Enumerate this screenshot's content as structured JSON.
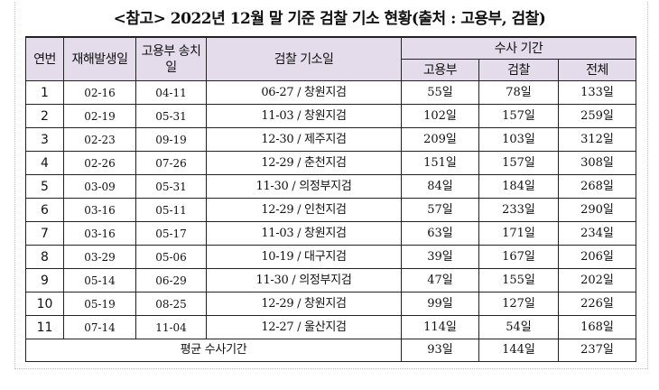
{
  "title": "<참고> 2022년 12월 말 기준 검찰 기소 현황(출처 : 고용부, 검찰)",
  "headers": {
    "no": "연번",
    "accident_date": "재해발생일",
    "sent_date": "고용부 송치일",
    "indict": "검찰 기소일",
    "investigation": "수사 기간",
    "labor": "고용부",
    "prosecution": "검찰",
    "total": "전체"
  },
  "rows": [
    {
      "no": "1",
      "accident": "02-16",
      "sent": "04-11",
      "indict": "06-27 / 창원지검",
      "labor": "55일",
      "prosecution": "78일",
      "total": "133일"
    },
    {
      "no": "2",
      "accident": "02-19",
      "sent": "05-31",
      "indict": "11-03 / 창원지검",
      "labor": "102일",
      "prosecution": "157일",
      "total": "259일"
    },
    {
      "no": "3",
      "accident": "02-23",
      "sent": "09-19",
      "indict": "12-30 / 제주지검",
      "labor": "209일",
      "prosecution": "103일",
      "total": "312일"
    },
    {
      "no": "4",
      "accident": "02-26",
      "sent": "07-26",
      "indict": "12-29 / 춘천지검",
      "labor": "151일",
      "prosecution": "157일",
      "total": "308일"
    },
    {
      "no": "5",
      "accident": "03-09",
      "sent": "05-31",
      "indict": "11-30 / 의정부지검",
      "labor": "84일",
      "prosecution": "184일",
      "total": "268일"
    },
    {
      "no": "6",
      "accident": "03-16",
      "sent": "05-11",
      "indict": "12-29 / 인천지검",
      "labor": "57일",
      "prosecution": "233일",
      "total": "290일"
    },
    {
      "no": "7",
      "accident": "03-16",
      "sent": "05-17",
      "indict": "11-03 / 창원지검",
      "labor": "63일",
      "prosecution": "171일",
      "total": "234일"
    },
    {
      "no": "8",
      "accident": "03-29",
      "sent": "05-06",
      "indict": "10-19 / 대구지검",
      "labor": "39일",
      "prosecution": "167일",
      "total": "206일"
    },
    {
      "no": "9",
      "accident": "05-14",
      "sent": "06-29",
      "indict": "11-30 / 의정부지검",
      "labor": "47일",
      "prosecution": "155일",
      "total": "202일"
    },
    {
      "no": "10",
      "accident": "05-19",
      "sent": "08-25",
      "indict": "12-29 / 창원지검",
      "labor": "99일",
      "prosecution": "127일",
      "total": "226일"
    },
    {
      "no": "11",
      "accident": "07-14",
      "sent": "11-04",
      "indict": "12-27 / 울산지검",
      "labor": "114일",
      "prosecution": "54일",
      "total": "168일"
    }
  ],
  "average": {
    "label": "평균 수사기간",
    "labor": "93일",
    "prosecution": "144일",
    "total": "237일"
  }
}
